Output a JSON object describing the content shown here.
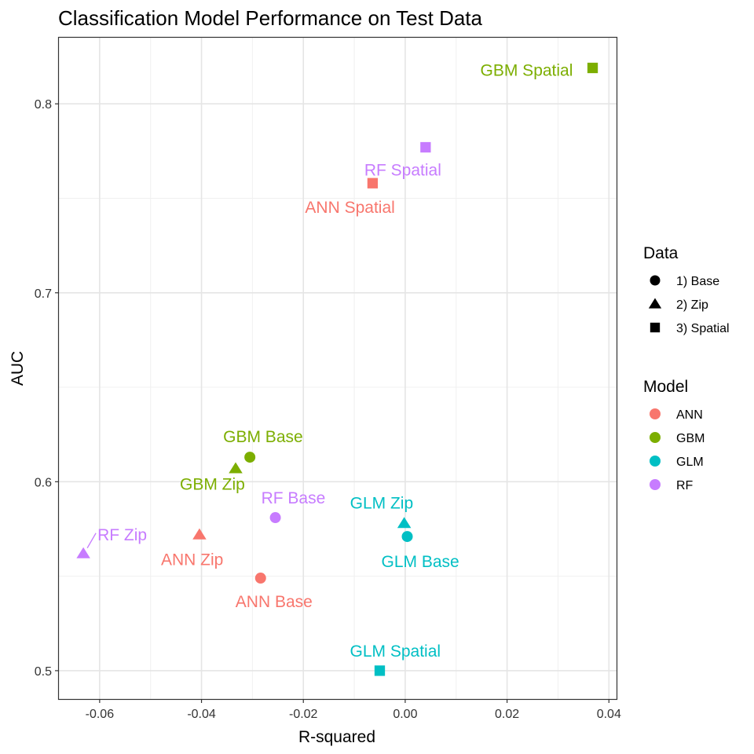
{
  "chart_data": {
    "type": "scatter",
    "title": "Classification Model Performance on Test Data",
    "xlabel": "R-squared",
    "ylabel": "AUC",
    "xlim": [
      -0.068,
      0.0415
    ],
    "ylim": [
      0.485,
      0.835
    ],
    "x_ticks": [
      -0.06,
      -0.04,
      -0.02,
      0.0,
      0.02,
      0.04
    ],
    "x_tick_labels": [
      "-0.06",
      "-0.04",
      "-0.02",
      "0.00",
      "0.02",
      "0.04"
    ],
    "y_ticks": [
      0.5,
      0.6,
      0.7,
      0.8
    ],
    "y_tick_labels": [
      "0.5",
      "0.6",
      "0.7",
      "0.8"
    ],
    "grid": true,
    "legend": {
      "position": "right",
      "shape": {
        "title": "Data",
        "items": [
          {
            "label": "1) Base",
            "shape": "circle"
          },
          {
            "label": "2) Zip",
            "shape": "triangle"
          },
          {
            "label": "3) Spatial",
            "shape": "square"
          }
        ]
      },
      "color": {
        "title": "Model",
        "items": [
          {
            "label": "ANN",
            "color": "#F8766D"
          },
          {
            "label": "GBM",
            "color": "#7CAE00"
          },
          {
            "label": "GLM",
            "color": "#00BFC4"
          },
          {
            "label": "RF",
            "color": "#C77CFF"
          }
        ]
      }
    },
    "points": [
      {
        "label": "GBM Spatial",
        "model": "GBM",
        "data": "3) Spatial",
        "x": 0.0368,
        "y": 0.819
      },
      {
        "label": "RF Spatial",
        "model": "RF",
        "data": "3) Spatial",
        "x": 0.004,
        "y": 0.777
      },
      {
        "label": "ANN Spatial",
        "model": "ANN",
        "data": "3) Spatial",
        "x": -0.0064,
        "y": 0.758
      },
      {
        "label": "GBM Base",
        "model": "GBM",
        "data": "1) Base",
        "x": -0.0305,
        "y": 0.613
      },
      {
        "label": "GBM Zip",
        "model": "GBM",
        "data": "2) Zip",
        "x": -0.0333,
        "y": 0.607
      },
      {
        "label": "RF Base",
        "model": "RF",
        "data": "1) Base",
        "x": -0.0255,
        "y": 0.581
      },
      {
        "label": "GLM Zip",
        "model": "GLM",
        "data": "2) Zip",
        "x": -0.0002,
        "y": 0.578
      },
      {
        "label": "GLM Base",
        "model": "GLM",
        "data": "1) Base",
        "x": 0.0004,
        "y": 0.571
      },
      {
        "label": "ANN Zip",
        "model": "ANN",
        "data": "2) Zip",
        "x": -0.0404,
        "y": 0.572
      },
      {
        "label": "RF Zip",
        "model": "RF",
        "data": "2) Zip",
        "x": -0.0632,
        "y": 0.562
      },
      {
        "label": "ANN Base",
        "model": "ANN",
        "data": "1) Base",
        "x": -0.0284,
        "y": 0.549
      },
      {
        "label": "GLM Spatial",
        "model": "GLM",
        "data": "3) Spatial",
        "x": -0.005,
        "y": 0.5
      }
    ]
  }
}
